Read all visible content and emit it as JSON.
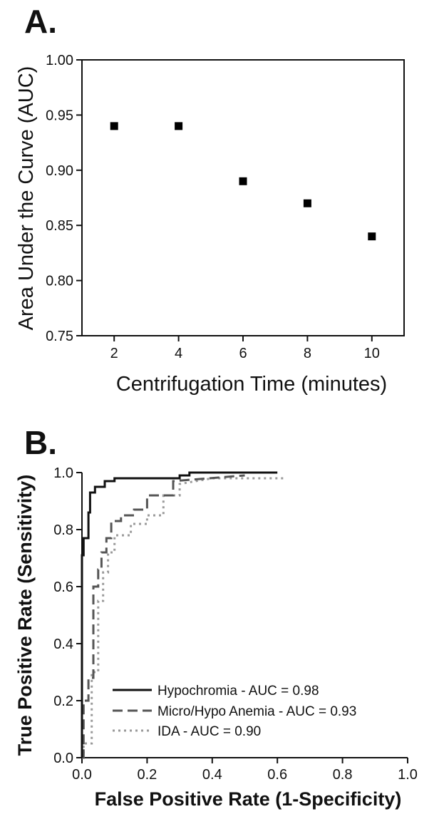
{
  "chart_data": [
    {
      "type": "scatter",
      "panel_label": "A.",
      "xlabel": "Centrifugation Time (minutes)",
      "ylabel": "Area Under the Curve (AUC)",
      "xlim": [
        1,
        11
      ],
      "ylim": [
        0.75,
        1.0
      ],
      "x_ticks": [
        2,
        4,
        6,
        8,
        10
      ],
      "y_ticks": [
        "0.75",
        "0.80",
        "0.85",
        "0.90",
        "0.95",
        "1.00"
      ],
      "grid": false,
      "marker": "square",
      "marker_color": "#000000",
      "series": [
        {
          "x": [
            2,
            4,
            6,
            8,
            10
          ],
          "y": [
            0.94,
            0.94,
            0.89,
            0.87,
            0.84
          ]
        }
      ]
    },
    {
      "type": "line",
      "panel_label": "B.",
      "xlabel": "False Positive Rate (1-Specificity)",
      "ylabel": "True Positive Rate (Sensitivity)",
      "xlim": [
        0,
        1.0
      ],
      "ylim": [
        0,
        1.0
      ],
      "x_ticks": [
        "0.0",
        "0.2",
        "0.4",
        "0.6",
        "0.8",
        "1.0"
      ],
      "y_ticks": [
        "0.0",
        "0.2",
        "0.4",
        "0.6",
        "0.8",
        "1.0"
      ],
      "grid": false,
      "legend_position": "bottom-left",
      "series": [
        {
          "name": "Hypochromia - AUC = 0.98",
          "color": "#111111",
          "dash": "solid",
          "x": [
            0,
            0,
            0.005,
            0.005,
            0.01,
            0.01,
            0.02,
            0.02,
            0.025,
            0.025,
            0.04,
            0.04,
            0.07,
            0.07,
            0.1,
            0.1,
            0.3,
            0.3,
            0.33,
            0.33,
            0.6
          ],
          "y": [
            0,
            0.71,
            0.71,
            0.77,
            0.77,
            0.77,
            0.77,
            0.86,
            0.86,
            0.93,
            0.93,
            0.95,
            0.95,
            0.97,
            0.97,
            0.98,
            0.98,
            0.99,
            0.99,
            1.0,
            1.0
          ]
        },
        {
          "name": "Micro/Hypo Anemia - AUC = 0.93",
          "color": "#555555",
          "dash": "long-dash",
          "x": [
            0,
            0.005,
            0.005,
            0.02,
            0.02,
            0.035,
            0.035,
            0.05,
            0.05,
            0.06,
            0.06,
            0.075,
            0.075,
            0.09,
            0.09,
            0.12,
            0.12,
            0.16,
            0.16,
            0.2,
            0.2,
            0.28,
            0.28,
            0.5
          ],
          "y": [
            0.0,
            0.0,
            0.2,
            0.2,
            0.28,
            0.28,
            0.6,
            0.6,
            0.66,
            0.66,
            0.72,
            0.72,
            0.77,
            0.77,
            0.83,
            0.83,
            0.85,
            0.85,
            0.87,
            0.87,
            0.92,
            0.92,
            0.97,
            0.99
          ]
        },
        {
          "name": "IDA - AUC = 0.90",
          "color": "#9a9a9a",
          "dash": "dotted",
          "x": [
            0,
            0.005,
            0.005,
            0.03,
            0.03,
            0.05,
            0.05,
            0.065,
            0.065,
            0.08,
            0.08,
            0.1,
            0.1,
            0.15,
            0.15,
            0.2,
            0.2,
            0.25,
            0.25,
            0.3,
            0.3,
            0.4,
            0.62
          ],
          "y": [
            0.0,
            0.0,
            0.05,
            0.05,
            0.3,
            0.3,
            0.55,
            0.55,
            0.65,
            0.65,
            0.72,
            0.72,
            0.78,
            0.78,
            0.82,
            0.82,
            0.85,
            0.85,
            0.92,
            0.92,
            0.96,
            0.98,
            0.98
          ]
        }
      ]
    }
  ]
}
